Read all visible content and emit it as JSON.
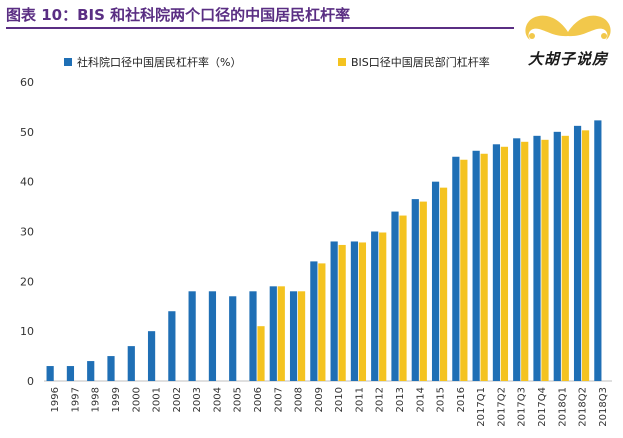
{
  "header": {
    "title": "图表 10：BIS 和社科院两个口径的中国居民杠杆率"
  },
  "logo": {
    "text": "大胡子说房",
    "icon": "mustache-icon",
    "color": "#f2c84b"
  },
  "colors": {
    "series1": "#1f6fb5",
    "series2": "#f4c320",
    "title": "#5a2e83"
  },
  "chart_data": {
    "type": "bar",
    "title": "",
    "xlabel": "",
    "ylabel": "",
    "ylim": [
      0,
      60
    ],
    "yticks": [
      0,
      10,
      20,
      30,
      40,
      50,
      60
    ],
    "grid": false,
    "legend_position": "top",
    "categories": [
      "1996",
      "1997",
      "1998",
      "1999",
      "2000",
      "2001",
      "2002",
      "2003",
      "2004",
      "2005",
      "2006",
      "2007",
      "2008",
      "2009",
      "2010",
      "2011",
      "2012",
      "2013",
      "2014",
      "2015",
      "2016",
      "2017Q1",
      "2017Q2",
      "2017Q3",
      "2017Q4",
      "2018Q1",
      "2018Q2",
      "2018Q3"
    ],
    "series": [
      {
        "name": "社科院口径中国居民杠杆率（%）",
        "values": [
          3,
          3,
          4,
          5,
          7,
          10,
          14,
          18,
          18,
          17,
          18,
          19,
          18,
          24,
          28,
          28,
          30,
          34,
          36.5,
          40,
          45,
          46.2,
          47.5,
          48.7,
          49.2,
          50,
          51.2,
          52.3
        ]
      },
      {
        "name": "BIS口径中国居民部门杠杆率",
        "values": [
          null,
          null,
          null,
          null,
          null,
          null,
          null,
          null,
          null,
          null,
          11,
          19,
          18,
          23.6,
          27.3,
          27.8,
          29.8,
          33.2,
          36,
          38.8,
          44.4,
          45.6,
          47,
          48,
          48.4,
          49.2,
          50.3,
          null
        ]
      }
    ]
  }
}
